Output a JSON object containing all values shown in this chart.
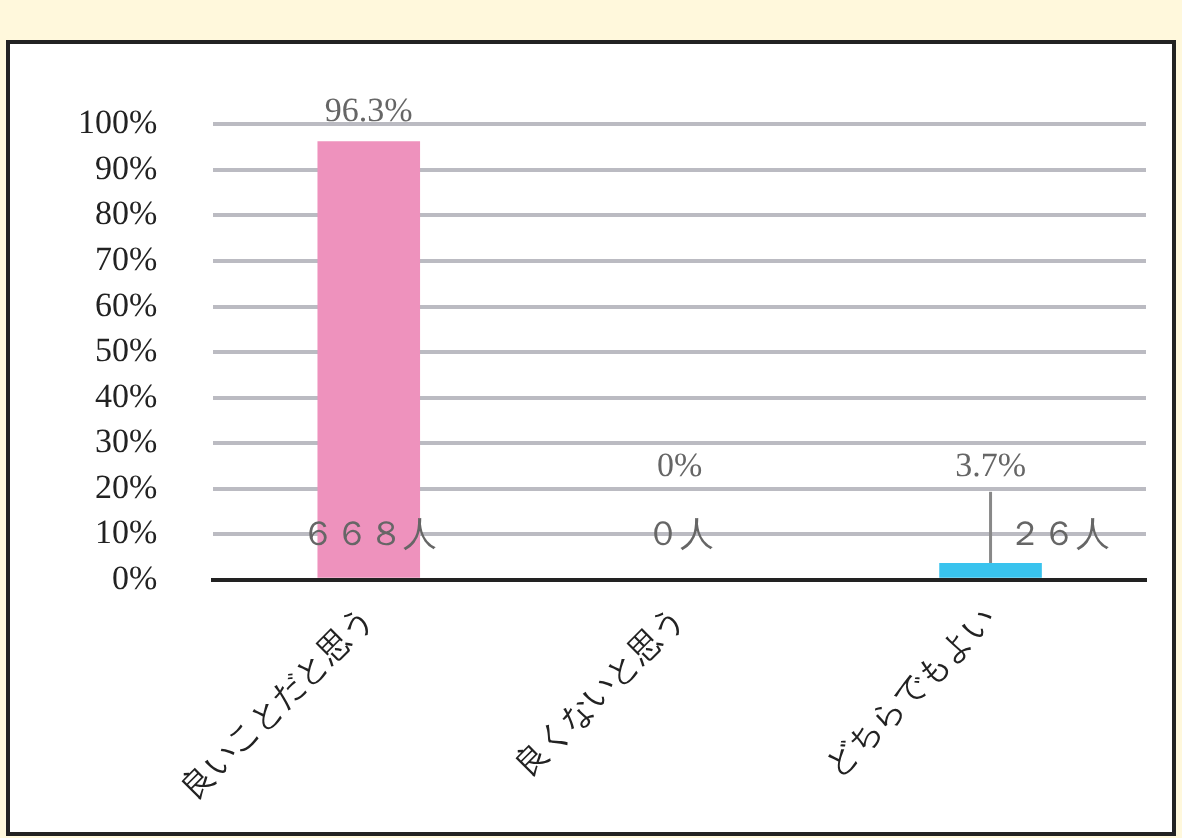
{
  "chart_data": {
    "type": "bar",
    "categories": [
      "良いことだと思う",
      "良くないと思う",
      "どちらでもよい"
    ],
    "values": [
      96.3,
      0,
      3.7
    ],
    "colors": [
      "#ee92bd",
      "#ee92bd",
      "#39c3ee"
    ],
    "value_labels": [
      "96.3%",
      "0%",
      "3.7%"
    ],
    "annotations": [
      "６６８人",
      "０人",
      "２６人"
    ],
    "ylim": [
      0,
      100
    ],
    "yticks": [
      {
        "value": 0,
        "label": "0%"
      },
      {
        "value": 10,
        "label": "10%"
      },
      {
        "value": 20,
        "label": "20%"
      },
      {
        "value": 30,
        "label": "30%"
      },
      {
        "value": 40,
        "label": "40%"
      },
      {
        "value": 50,
        "label": "50%"
      },
      {
        "value": 60,
        "label": "60%"
      },
      {
        "value": 70,
        "label": "70%"
      },
      {
        "value": 80,
        "label": "80%"
      },
      {
        "value": 90,
        "label": "90%"
      },
      {
        "value": 100,
        "label": "100%"
      }
    ],
    "grid": "y",
    "legend": false
  }
}
